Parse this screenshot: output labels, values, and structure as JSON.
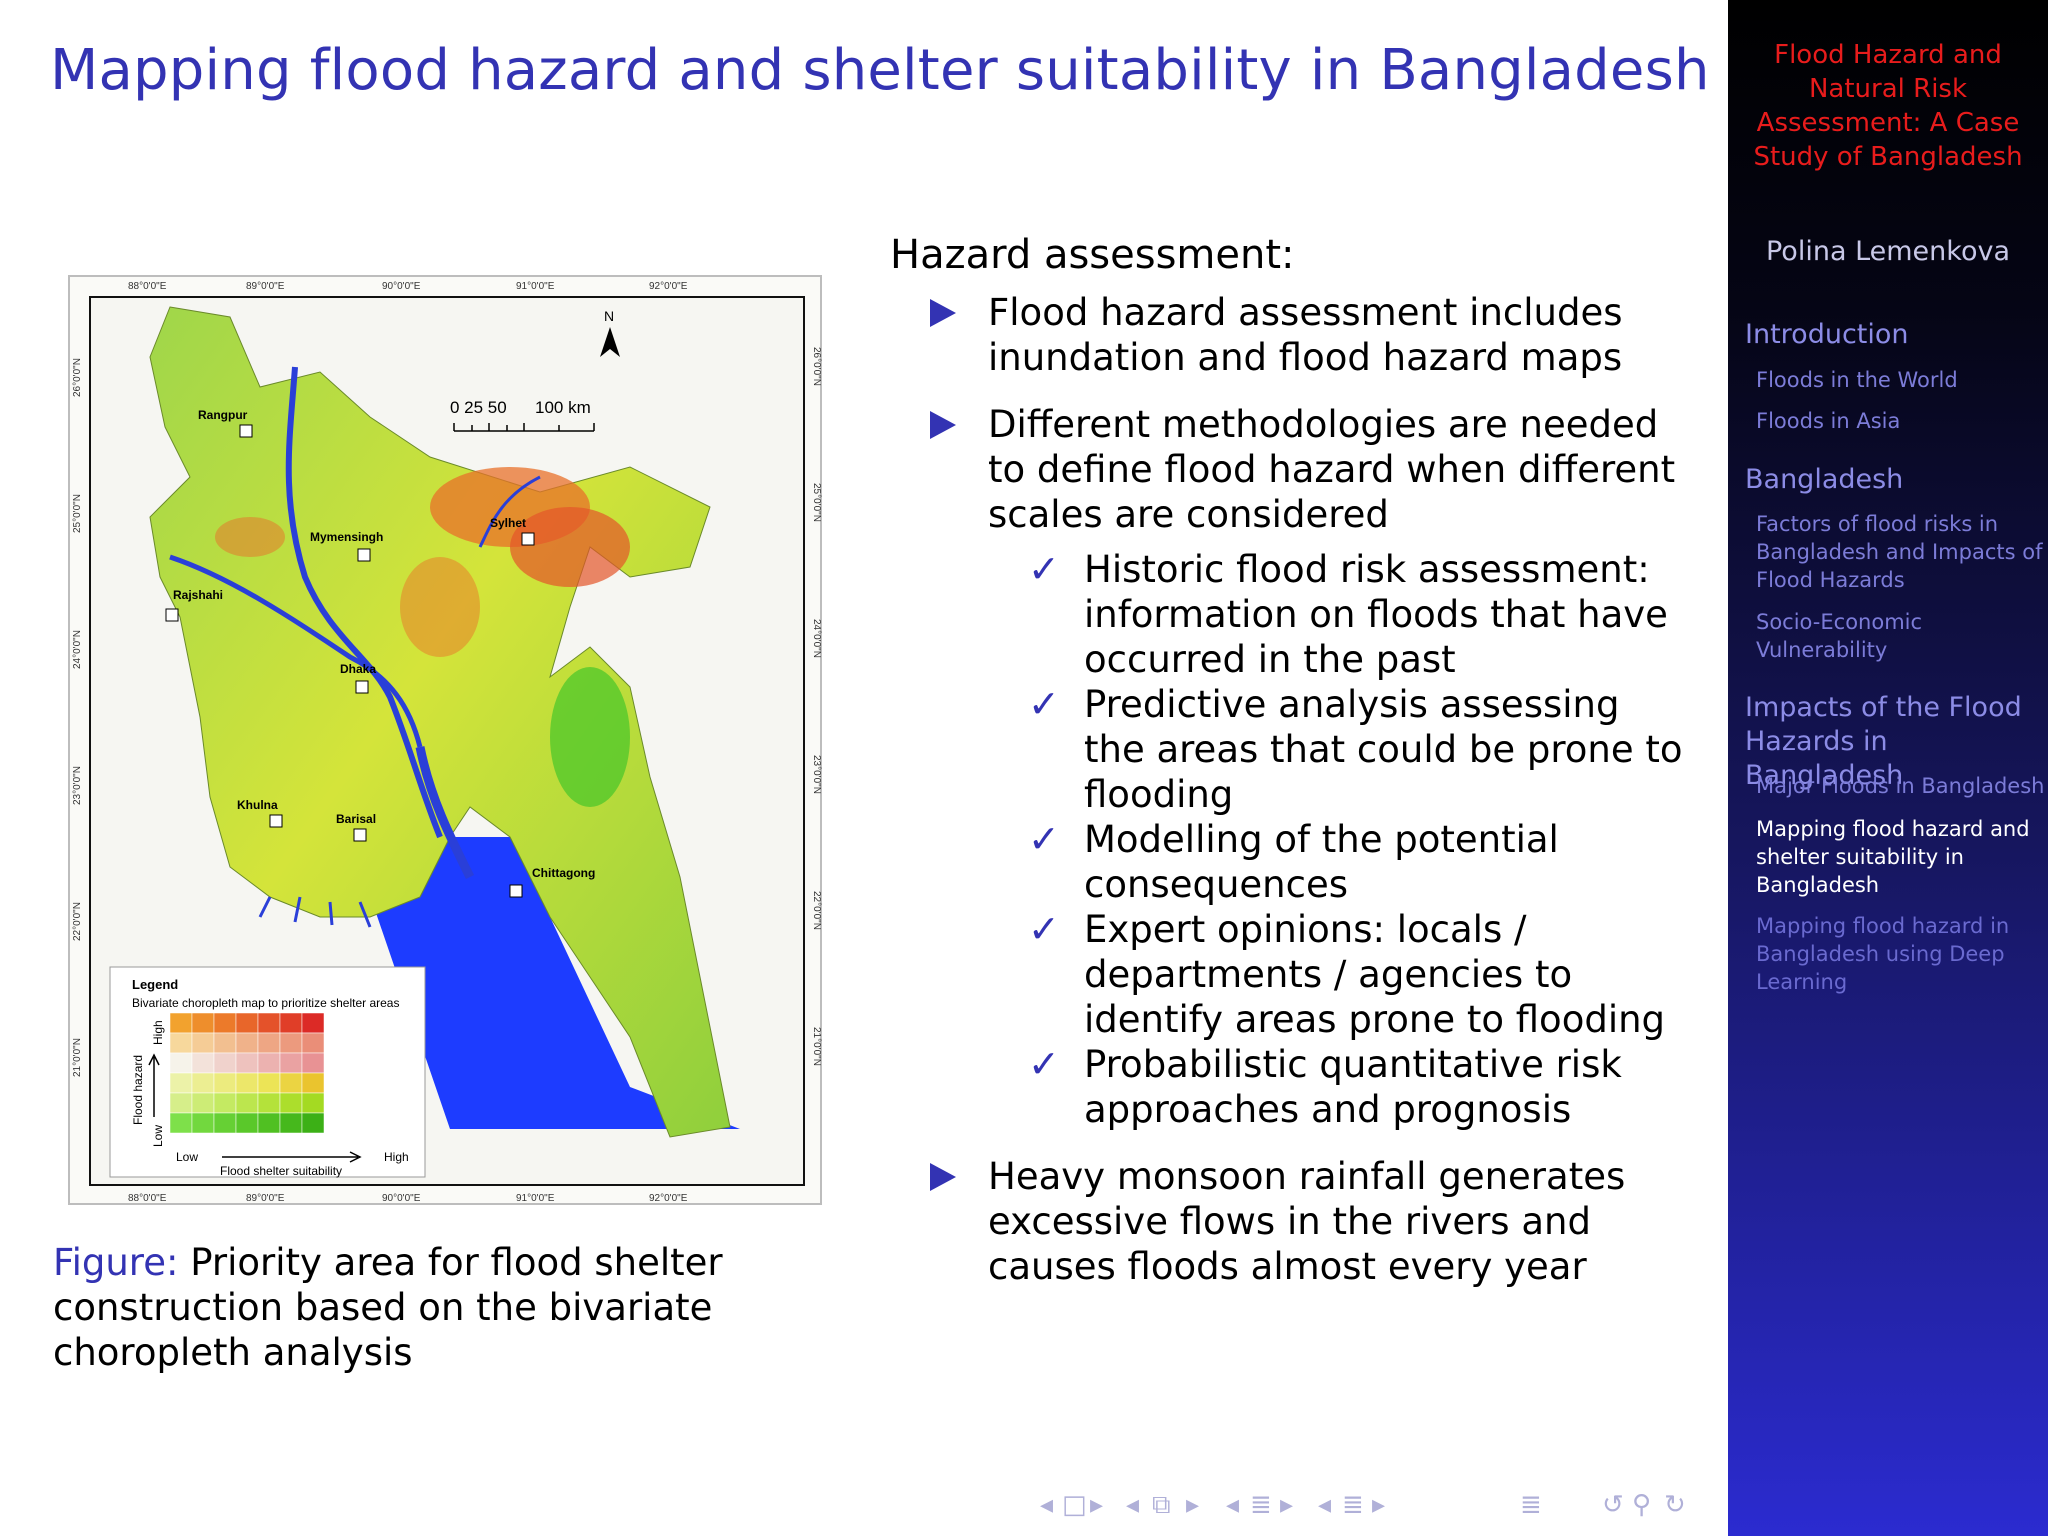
{
  "slide": {
    "title": "Mapping flood hazard and shelter suitability in Bangladesh"
  },
  "figure": {
    "caption_label": "Figure:",
    "caption_text": "Priority area for flood shelter construction based on the bivariate choropleth analysis",
    "map": {
      "top_ticks": [
        "88°0'0\"E",
        "89°0'0\"E",
        "90°0'0\"E",
        "91°0'0\"E",
        "92°0'0\"E"
      ],
      "side_ticks": [
        "26°0'0\"N",
        "25°0'0\"N",
        "24°0'0\"N",
        "23°0'0\"N",
        "22°0'0\"N",
        "21°0'0\"N"
      ],
      "north_label": "N",
      "scale_label_1": "0  25 50",
      "scale_label_2": "100 km",
      "cities": {
        "rangpur": "Rangpur",
        "mymensingh": "Mymensingh",
        "sylhet": "Sylhet",
        "rajshahi": "Rajshahi",
        "dhaka": "Dhaka",
        "khulna": "Khulna",
        "barisal": "Barisal",
        "chittagong": "Chittagong"
      },
      "legend": {
        "title": "Legend",
        "subtitle": "Bivariate choropleth map to prioritize shelter areas",
        "y_axis": "Flood hazard",
        "y_high": "High",
        "y_low": "Low",
        "x_axis": "Flood shelter suitability",
        "x_low": "Low",
        "x_high": "High"
      }
    }
  },
  "content": {
    "heading": "Hazard assessment:",
    "bullet1": "Flood hazard assessment includes inundation and flood hazard maps",
    "bullet2": "Different methodologies are needed to define flood hazard when different scales are considered",
    "subs": [
      "Historic flood risk assessment: information on floods that have occurred in the past",
      "Predictive analysis assessing the areas that could be prone to flooding",
      "Modelling of the potential consequences",
      "Expert opinions: locals / departments / agencies to identify areas prone to flooding",
      "Probabilistic quantitative risk approaches and prognosis"
    ],
    "bullet3": "Heavy monsoon rainfall generates excessive flows in the rivers and causes floods almost every year",
    "check_glyph": "✓"
  },
  "sidebar": {
    "title": "Flood Hazard and Natural Risk Assessment: A Case Study of Bangladesh",
    "author": "Polina Lemenkova",
    "sections": [
      {
        "label": "Introduction"
      },
      {
        "label": "Bangladesh"
      },
      {
        "label": "Impacts of the Flood Hazards in Bangladesh"
      }
    ],
    "subsections": [
      "Floods in the World",
      "Floods in Asia",
      "Factors of flood risks in Bangladesh and Impacts of Flood Hazards",
      "Socio-Economic Vulnerability",
      "Major Floods in Bangladesh",
      "Mapping flood hazard and shelter suitability in Bangladesh",
      "Mapping flood hazard in Bangladesh using Deep Learning"
    ]
  },
  "colors": {
    "structure": "#3333b3",
    "sidebar_title": "#e81c1c",
    "sidebar_current": "#ffffff"
  },
  "nav_icons": [
    "nav-prev-icon",
    "slide-icon",
    "nav-next-icon",
    "frame-icon",
    "subsection-icon",
    "section-icon",
    "toc-icon",
    "search-icon",
    "back-icon"
  ]
}
